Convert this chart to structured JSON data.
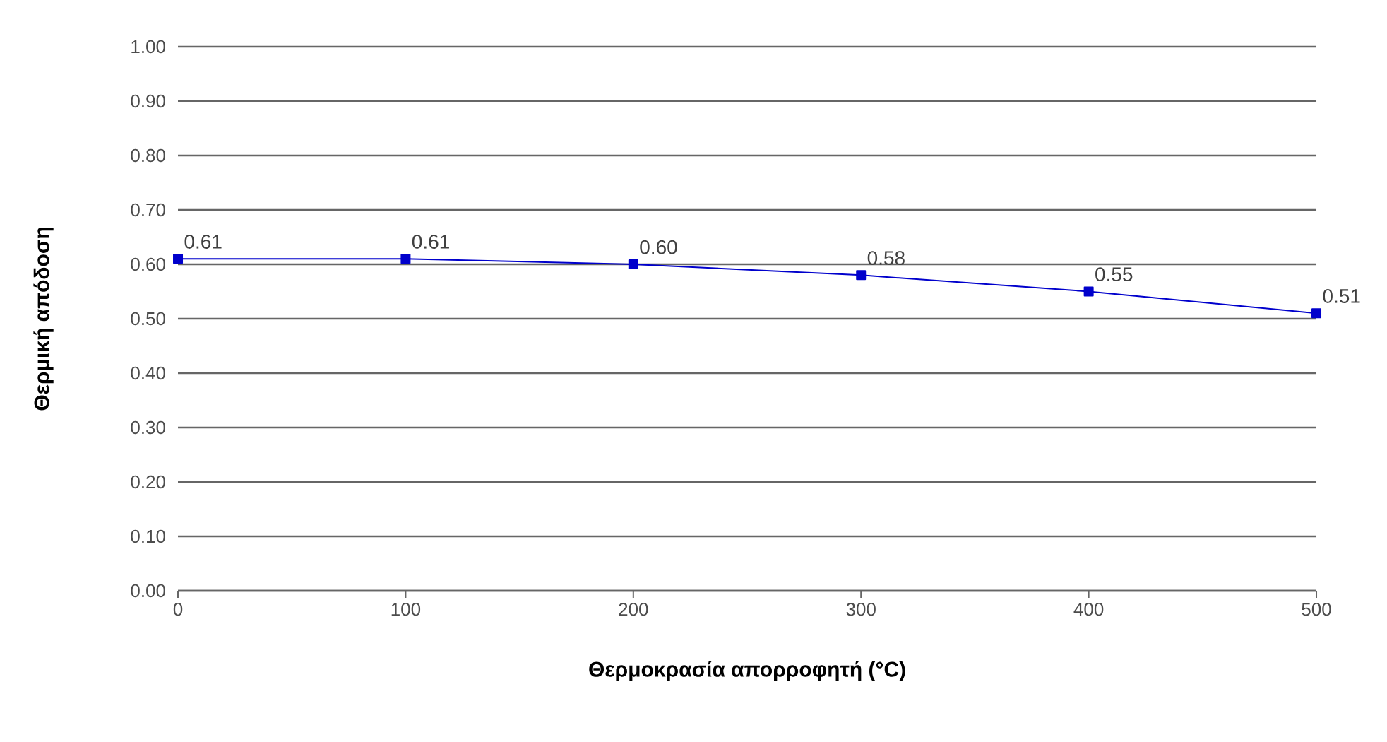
{
  "chart_data": {
    "type": "line",
    "xlabel": "Θερμοκρασία απορροφητή (°C)",
    "ylabel": "Θερμική απόδοση",
    "x": [
      0,
      100,
      200,
      300,
      400,
      500
    ],
    "series": [
      {
        "color": "#0000cc",
        "values": [
          0.61,
          0.61,
          0.6,
          0.58,
          0.55,
          0.51
        ],
        "value_labels": [
          "0.61",
          "0.61",
          "0.60",
          "0.58",
          "0.55",
          "0.51"
        ]
      }
    ],
    "xlim": [
      0,
      500
    ],
    "xticks": [
      0,
      100,
      200,
      300,
      400,
      500
    ],
    "ylim": [
      0,
      1
    ],
    "yticks": [
      {
        "value": 0,
        "label": "0.00"
      },
      {
        "value": 0.1,
        "label": "0.10"
      },
      {
        "value": 0.2,
        "label": "0.20"
      },
      {
        "value": 0.3,
        "label": "0.30"
      },
      {
        "value": 0.4,
        "label": "0.40"
      },
      {
        "value": 0.5,
        "label": "0.50"
      },
      {
        "value": 0.6,
        "label": "0.60"
      },
      {
        "value": 0.7,
        "label": "0.70"
      },
      {
        "value": 0.8,
        "label": "0.80"
      },
      {
        "value": 0.9,
        "label": "0.90"
      },
      {
        "value": 1,
        "label": "1.00"
      }
    ],
    "grid": "y",
    "marker": "square",
    "line_style": "solid"
  }
}
